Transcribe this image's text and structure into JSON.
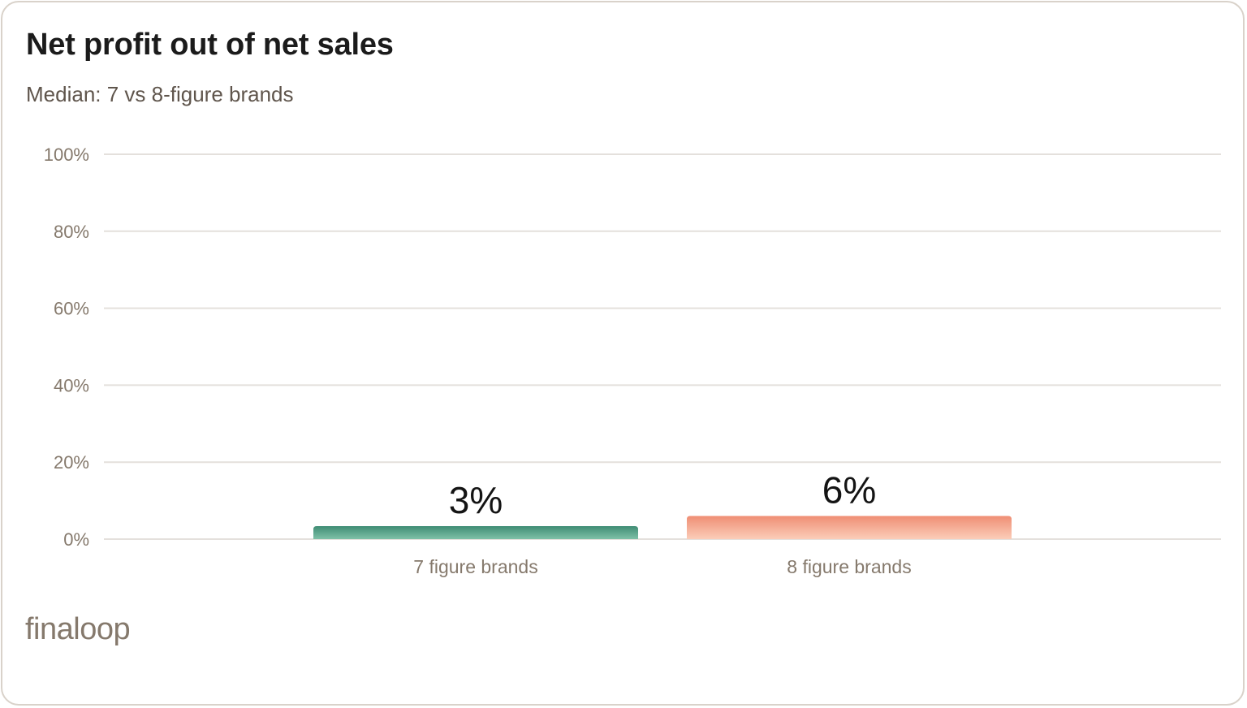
{
  "header": {
    "title": "Net profit out of net sales",
    "subtitle": "Median: 7 vs 8-figure brands"
  },
  "logo": {
    "text": "finaloop",
    "color": "#85796c"
  },
  "chart_data": {
    "type": "bar",
    "title": "Net profit out of net sales",
    "subtitle": "Median: 7 vs 8-figure brands",
    "categories": [
      "7 figure brands",
      "8 figure brands"
    ],
    "values": [
      3,
      6
    ],
    "value_labels": [
      "3%",
      "6%"
    ],
    "colors": [
      {
        "top": "#3f8c74",
        "bottom": "#7fc1a8"
      },
      {
        "top": "#ef8e74",
        "bottom": "#fbcdb9"
      }
    ],
    "ylim": [
      0,
      100
    ],
    "yticks": [
      0,
      20,
      40,
      60,
      80,
      100
    ],
    "ytick_labels": [
      "0%",
      "20%",
      "40%",
      "60%",
      "80%",
      "100%"
    ],
    "xlabel": "",
    "ylabel": "",
    "grid": true,
    "legend": "none"
  }
}
